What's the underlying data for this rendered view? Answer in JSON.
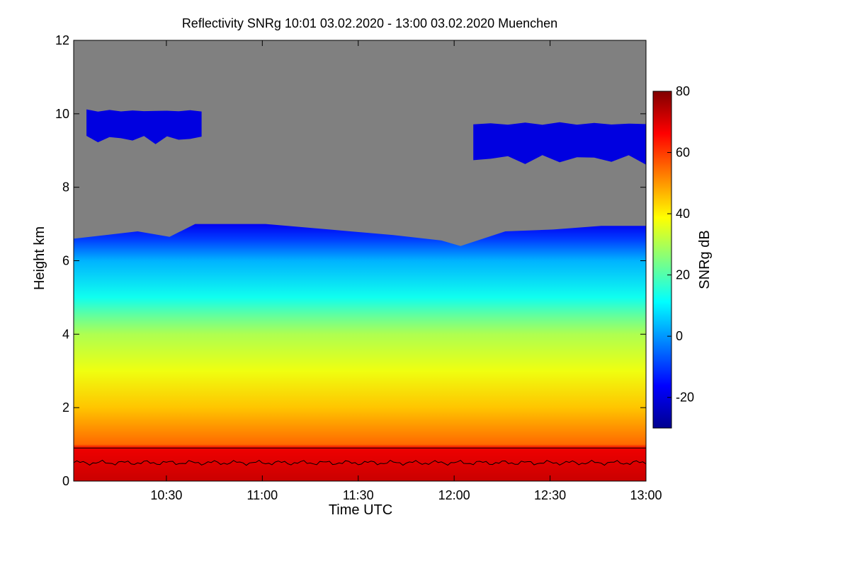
{
  "chart_data": {
    "type": "heatmap",
    "title": "Reflectivity SNRg   10:01 03.02.2020 - 13:00 03.02.2020 Muenchen",
    "xlabel": "Time UTC",
    "ylabel": "Height km",
    "colorbar_label": "SNRg dB",
    "x_range": [
      "10:01",
      "13:00"
    ],
    "x_ticks": [
      "10:30",
      "11:00",
      "11:30",
      "12:00",
      "12:30",
      "13:00"
    ],
    "x_tick_minutes": [
      29,
      59,
      89,
      119,
      149,
      179
    ],
    "x_span_minutes": 179,
    "ylim": [
      0,
      12
    ],
    "y_ticks": [
      0,
      2,
      4,
      6,
      8,
      10,
      12
    ],
    "clim": [
      -30,
      80
    ],
    "colorbar_ticks": [
      -20,
      0,
      20,
      40,
      60,
      80
    ],
    "missing_color": "#808080",
    "colormap": [
      "#00008f",
      "#0000ff",
      "#0080ff",
      "#00ffff",
      "#80ff80",
      "#ffff00",
      "#ff8000",
      "#ff0000",
      "#800000"
    ],
    "profile_snr_db": [
      {
        "height_km": 0.0,
        "snr_db": 72
      },
      {
        "height_km": 0.9,
        "snr_db": 68
      },
      {
        "height_km": 1.0,
        "snr_db": 55
      },
      {
        "height_km": 2.0,
        "snr_db": 45
      },
      {
        "height_km": 3.0,
        "snr_db": 37
      },
      {
        "height_km": 4.0,
        "snr_db": 30
      },
      {
        "height_km": 4.5,
        "snr_db": 22
      },
      {
        "height_km": 5.0,
        "snr_db": 13
      },
      {
        "height_km": 6.0,
        "snr_db": 3
      },
      {
        "height_km": 6.6,
        "snr_db": -10
      },
      {
        "height_km": 7.0,
        "snr_db": -18
      }
    ],
    "cloud_top_km": [
      {
        "t": 0,
        "h": 6.6
      },
      {
        "t": 10,
        "h": 6.7
      },
      {
        "t": 20,
        "h": 6.8
      },
      {
        "t": 30,
        "h": 6.65
      },
      {
        "t": 38,
        "h": 7.0
      },
      {
        "t": 60,
        "h": 7.0
      },
      {
        "t": 80,
        "h": 6.85
      },
      {
        "t": 100,
        "h": 6.7
      },
      {
        "t": 115,
        "h": 6.55
      },
      {
        "t": 121,
        "h": 6.4
      },
      {
        "t": 135,
        "h": 6.8
      },
      {
        "t": 150,
        "h": 6.85
      },
      {
        "t": 165,
        "h": 6.95
      },
      {
        "t": 179,
        "h": 6.95
      }
    ],
    "upper_clouds": [
      {
        "t_start": 4,
        "t_end": 40,
        "base_km": 9.1,
        "top_km": 10.3,
        "snr_db": -20
      },
      {
        "t_start": 125,
        "t_end": 179,
        "base_km": 8.5,
        "top_km": 10.0,
        "snr_db": -20
      }
    ],
    "reference_line_km": 0.9,
    "boundary_layer_height_km": 0.5
  }
}
